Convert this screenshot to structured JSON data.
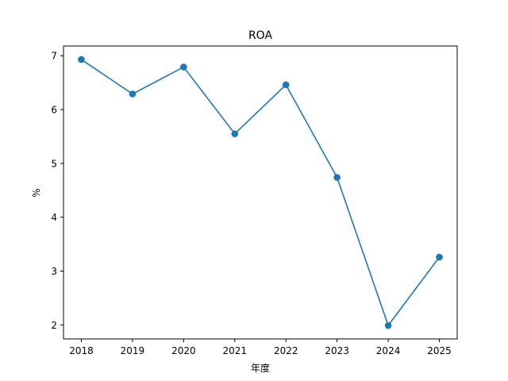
{
  "chart_data": {
    "type": "line",
    "title": "ROA",
    "xlabel": "年度",
    "ylabel": "%",
    "categories": [
      "2018",
      "2019",
      "2020",
      "2021",
      "2022",
      "2023",
      "2024",
      "2025"
    ],
    "series": [
      {
        "values": [
          6.93,
          6.29,
          6.79,
          5.55,
          6.46,
          4.74,
          1.99,
          3.26
        ],
        "color": "#1f77b4"
      }
    ],
    "yticks": [
      2,
      3,
      4,
      5,
      6,
      7
    ],
    "ylim": [
      1.74,
      7.18
    ],
    "grid": false,
    "legend": "none",
    "marker": "circle"
  }
}
